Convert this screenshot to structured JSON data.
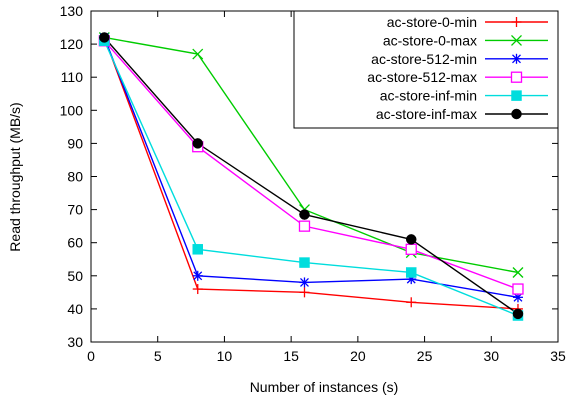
{
  "chart_data": {
    "type": "line",
    "xlabel": "Number of instances (s)",
    "ylabel": "Read throughput (MB/s)",
    "xlim": [
      0,
      35
    ],
    "ylim": [
      30,
      130
    ],
    "xticks": [
      0,
      5,
      10,
      15,
      20,
      25,
      30,
      35
    ],
    "yticks": [
      30,
      40,
      50,
      60,
      70,
      80,
      90,
      100,
      110,
      120,
      130
    ],
    "grid": false,
    "legend_position": "top-right",
    "x": [
      1,
      8,
      16,
      24,
      32
    ],
    "series": [
      {
        "name": "ac-store-0-min",
        "color": "#ff0000",
        "marker": "plus",
        "values": [
          122,
          46,
          45,
          42,
          40
        ]
      },
      {
        "name": "ac-store-0-max",
        "color": "#00cc00",
        "marker": "cross",
        "values": [
          122,
          117,
          70,
          57,
          51
        ]
      },
      {
        "name": "ac-store-512-min",
        "color": "#0000ff",
        "marker": "star",
        "values": [
          122,
          50,
          48,
          49,
          43.5
        ]
      },
      {
        "name": "ac-store-512-max",
        "color": "#ff00ff",
        "marker": "open-square",
        "values": [
          121,
          89,
          65,
          58,
          46
        ]
      },
      {
        "name": "ac-store-inf-min",
        "color": "#00dddd",
        "marker": "filled-square",
        "values": [
          121,
          58,
          54,
          51,
          38
        ]
      },
      {
        "name": "ac-store-inf-max",
        "color": "#000000",
        "marker": "filled-circle",
        "values": [
          122,
          90,
          68.5,
          61,
          38.5
        ]
      }
    ]
  }
}
